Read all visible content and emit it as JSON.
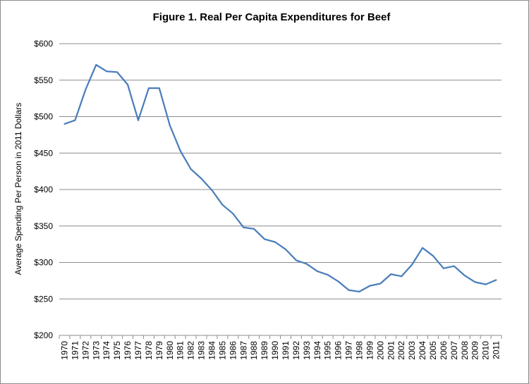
{
  "chart_data": {
    "type": "line",
    "title": "Figure 1. Real Per Capita Expenditures for Beef",
    "xlabel": "",
    "ylabel": "Average Spending Per Person in 2011 Dollars",
    "ylim": [
      200,
      600
    ],
    "yticks": [
      200,
      250,
      300,
      350,
      400,
      450,
      500,
      550,
      600
    ],
    "ytick_labels": [
      "$200",
      "$250",
      "$300",
      "$350",
      "$400",
      "$450",
      "$500",
      "$550",
      "$600"
    ],
    "grid": true,
    "legend": "none",
    "line_color": "#4a7ebb",
    "x": [
      "1970",
      "1971",
      "1972",
      "1973",
      "1974",
      "1975",
      "1976",
      "1977",
      "1978",
      "1979",
      "1980",
      "1981",
      "1982",
      "1983",
      "1984",
      "1985",
      "1986",
      "1987",
      "1988",
      "1989",
      "1990",
      "1991",
      "1992",
      "1993",
      "1994",
      "1995",
      "1996",
      "1997",
      "1998",
      "1999",
      "2000",
      "2001",
      "2002",
      "2003",
      "2004",
      "2005",
      "2006",
      "2007",
      "2008",
      "2009",
      "2010",
      "2011"
    ],
    "series": [
      {
        "values": [
          490,
          495,
          537,
          571,
          562,
          561,
          544,
          495,
          539,
          539,
          488,
          453,
          428,
          415,
          399,
          379,
          367,
          348,
          346,
          332,
          328,
          318,
          303,
          298,
          288,
          283,
          274,
          262,
          260,
          268,
          271,
          284,
          281,
          297,
          320,
          309,
          292,
          295,
          282,
          273,
          270,
          276
        ]
      }
    ]
  }
}
